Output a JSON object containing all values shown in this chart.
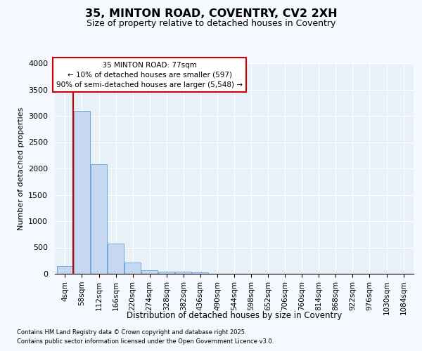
{
  "title": "35, MINTON ROAD, COVENTRY, CV2 2XH",
  "subtitle": "Size of property relative to detached houses in Coventry",
  "xlabel": "Distribution of detached houses by size in Coventry",
  "ylabel": "Number of detached properties",
  "bar_color": "#c5d8ef",
  "bar_edge_color": "#6fa8dc",
  "background_color": "#dce6f5",
  "plot_bg_color": "#e8f0f8",
  "grid_color": "#ffffff",
  "vline_color": "#cc0000",
  "vline_x": 0.5,
  "annotation_title": "35 MINTON ROAD: 77sqm",
  "annotation_line1": "← 10% of detached houses are smaller (597)",
  "annotation_line2": "90% of semi-detached houses are larger (5,548) →",
  "annotation_box_color": "#ffffff",
  "annotation_box_edge": "#cc0000",
  "categories": [
    "4sqm",
    "58sqm",
    "112sqm",
    "166sqm",
    "220sqm",
    "274sqm",
    "328sqm",
    "382sqm",
    "436sqm",
    "490sqm",
    "544sqm",
    "598sqm",
    "652sqm",
    "706sqm",
    "760sqm",
    "814sqm",
    "868sqm",
    "922sqm",
    "976sqm",
    "1030sqm",
    "1084sqm"
  ],
  "values": [
    150,
    3100,
    2080,
    575,
    215,
    70,
    45,
    35,
    25,
    0,
    0,
    0,
    0,
    0,
    0,
    0,
    0,
    0,
    0,
    0,
    0
  ],
  "ylim": [
    0,
    4000
  ],
  "yticks": [
    0,
    500,
    1000,
    1500,
    2000,
    2500,
    3000,
    3500,
    4000
  ],
  "footnote1": "Contains HM Land Registry data © Crown copyright and database right 2025.",
  "footnote2": "Contains public sector information licensed under the Open Government Licence v3.0."
}
